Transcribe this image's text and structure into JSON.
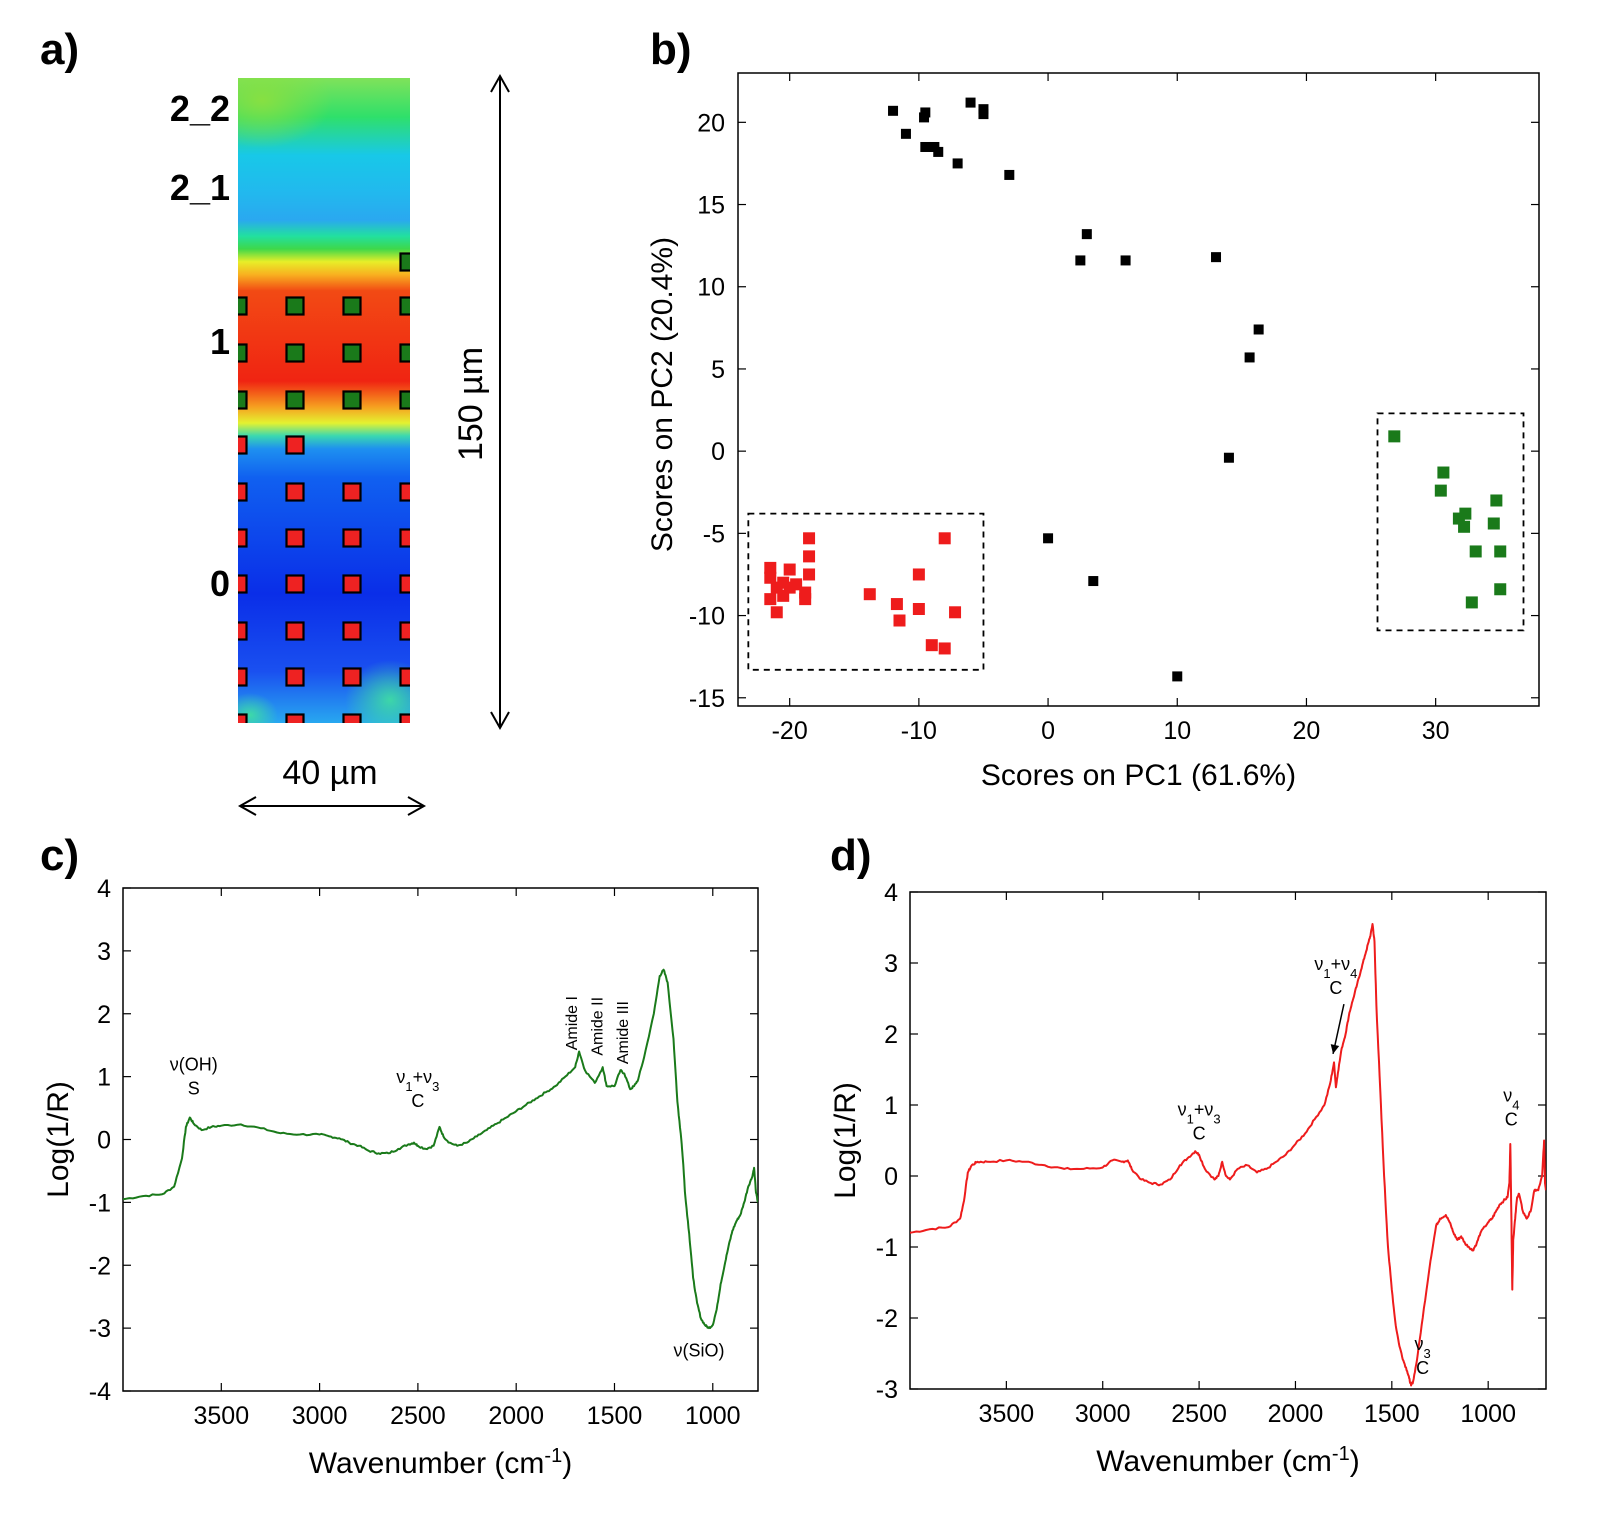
{
  "panels": {
    "a": {
      "label": "a)",
      "row_labels": [
        "2_2",
        "2_1",
        "1",
        "0"
      ],
      "height_label": "150 µm",
      "width_label": "40 µm"
    },
    "b": {
      "label": "b)"
    },
    "c": {
      "label": "c)"
    },
    "d": {
      "label": "d)"
    }
  },
  "chart_data": [
    {
      "panel": "a",
      "type": "heatmap",
      "title": "",
      "color_bands_top_to_bottom": [
        "green",
        "cyan-blue",
        "green",
        "yellow",
        "red",
        "yellow",
        "blue"
      ],
      "markers": {
        "green": {
          "color": "#1a7a1a",
          "columns": 4,
          "rows": 3,
          "extra": "top-right cell"
        },
        "red": {
          "color": "#ee2222",
          "columns": 4,
          "rows": 6,
          "first_row": "2 markers"
        }
      }
    },
    {
      "panel": "b",
      "type": "scatter",
      "xlabel": "Scores on PC1 (61.6%)",
      "ylabel": "Scores on PC2 (20.4%)",
      "xlim": [
        -24,
        38
      ],
      "ylim": [
        -15.5,
        23
      ],
      "xticks": [
        -20,
        -10,
        0,
        10,
        20,
        30
      ],
      "yticks": [
        -15,
        -10,
        -5,
        0,
        5,
        10,
        15,
        20
      ],
      "series": [
        {
          "color": "#000000",
          "points": [
            [
              -12,
              20.7
            ],
            [
              -9.5,
              20.6
            ],
            [
              -9.6,
              20.3
            ],
            [
              -6,
              21.2
            ],
            [
              -5,
              20.8
            ],
            [
              -5,
              20.5
            ],
            [
              -11,
              19.3
            ],
            [
              -9.5,
              18.5
            ],
            [
              -8.8,
              18.5
            ],
            [
              -8.5,
              18.2
            ],
            [
              -7,
              17.5
            ],
            [
              -3,
              16.8
            ],
            [
              3,
              13.2
            ],
            [
              2.5,
              11.6
            ],
            [
              6,
              11.6
            ],
            [
              13,
              11.8
            ],
            [
              16.3,
              7.4
            ],
            [
              15.6,
              5.7
            ],
            [
              14,
              -0.4
            ],
            [
              0,
              -5.3
            ],
            [
              3.5,
              -7.9
            ],
            [
              10,
              -13.7
            ]
          ]
        },
        {
          "color": "#ee1c1c",
          "points": [
            [
              -18.5,
              -5.3
            ],
            [
              -21.5,
              -7.1
            ],
            [
              -20,
              -7.2
            ],
            [
              -18.5,
              -6.4
            ],
            [
              -18.5,
              -7.5
            ],
            [
              -21.5,
              -7.7
            ],
            [
              -20.5,
              -8
            ],
            [
              -19.5,
              -8.1
            ],
            [
              -20,
              -8.3
            ],
            [
              -21,
              -8.3
            ],
            [
              -20.5,
              -8.8
            ],
            [
              -18.8,
              -8.6
            ],
            [
              -18.8,
              -9
            ],
            [
              -21.5,
              -9
            ],
            [
              -21,
              -9.8
            ],
            [
              -13.8,
              -8.7
            ],
            [
              -11.7,
              -9.3
            ],
            [
              -10,
              -9.6
            ],
            [
              -11.5,
              -10.3
            ],
            [
              -10,
              -7.5
            ],
            [
              -8,
              -5.3
            ],
            [
              -7.2,
              -9.8
            ],
            [
              -9,
              -11.8
            ],
            [
              -8,
              -12
            ]
          ]
        },
        {
          "color": "#1a7a1a",
          "points": [
            [
              26.8,
              0.9
            ],
            [
              30.6,
              -1.3
            ],
            [
              30.4,
              -2.4
            ],
            [
              32.3,
              -3.8
            ],
            [
              31.8,
              -4.1
            ],
            [
              32.2,
              -4.6
            ],
            [
              34.7,
              -3
            ],
            [
              34.5,
              -4.4
            ],
            [
              33.1,
              -6.1
            ],
            [
              35,
              -6.1
            ],
            [
              35,
              -8.4
            ],
            [
              32.8,
              -9.2
            ]
          ]
        }
      ],
      "annotations": [
        {
          "kind": "dashed-box",
          "x": [
            -23.2,
            -5
          ],
          "y": [
            -13.3,
            -3.8
          ]
        },
        {
          "kind": "dashed-box",
          "x": [
            25.5,
            36.8
          ],
          "y": [
            -10.9,
            2.3
          ]
        }
      ]
    },
    {
      "panel": "c",
      "type": "line",
      "xlabel_text": "Wavenumber (cm",
      "xlabel_sup": "-1",
      "xlabel_end": ")",
      "ylabel": "Log(1/R)",
      "xlim": [
        4000,
        770
      ],
      "ylim": [
        -4,
        4
      ],
      "x_reversed": true,
      "xticks": [
        3500,
        3000,
        2500,
        2000,
        1500,
        1000
      ],
      "yticks": [
        -4,
        -3,
        -2,
        -1,
        0,
        1,
        2,
        3,
        4
      ],
      "color": "#1a7a1a",
      "x": [
        4000,
        3900,
        3800,
        3740,
        3700,
        3680,
        3660,
        3640,
        3600,
        3550,
        3500,
        3400,
        3300,
        3200,
        3100,
        3000,
        2950,
        2900,
        2850,
        2800,
        2750,
        2700,
        2650,
        2600,
        2550,
        2520,
        2500,
        2460,
        2420,
        2390,
        2370,
        2340,
        2300,
        2250,
        2200,
        2150,
        2100,
        2050,
        2000,
        1950,
        1900,
        1850,
        1800,
        1750,
        1700,
        1680,
        1650,
        1600,
        1560,
        1540,
        1500,
        1470,
        1450,
        1420,
        1400,
        1380,
        1350,
        1300,
        1270,
        1250,
        1230,
        1200,
        1180,
        1160,
        1150,
        1140,
        1120,
        1100,
        1080,
        1060,
        1040,
        1020,
        1000,
        980,
        960,
        940,
        920,
        900,
        880,
        860,
        840,
        820,
        800,
        790,
        780,
        770
      ],
      "y": [
        -0.95,
        -0.9,
        -0.87,
        -0.75,
        -0.3,
        0.2,
        0.35,
        0.25,
        0.15,
        0.2,
        0.22,
        0.24,
        0.18,
        0.1,
        0.08,
        0.08,
        0.05,
        0.02,
        -0.05,
        -0.1,
        -0.18,
        -0.22,
        -0.22,
        -0.15,
        -0.08,
        -0.05,
        -0.1,
        -0.15,
        -0.1,
        0.2,
        0.05,
        -0.05,
        -0.1,
        -0.05,
        0.05,
        0.15,
        0.25,
        0.35,
        0.45,
        0.55,
        0.65,
        0.75,
        0.85,
        1.0,
        1.15,
        1.4,
        1.1,
        0.9,
        1.15,
        0.85,
        0.85,
        1.1,
        1.05,
        0.8,
        0.85,
        0.95,
        1.3,
        2.0,
        2.6,
        2.7,
        2.5,
        1.6,
        0.6,
        0.0,
        -0.4,
        -0.9,
        -1.5,
        -2.2,
        -2.6,
        -2.85,
        -2.95,
        -3.0,
        -2.95,
        -2.7,
        -2.3,
        -2.0,
        -1.7,
        -1.45,
        -1.3,
        -1.2,
        -1.0,
        -0.75,
        -0.6,
        -0.45,
        -0.85,
        -1.0
      ],
      "annotations": [
        {
          "text": "ν(OH)",
          "sub": "S",
          "x": 3640,
          "y": 1.1
        },
        {
          "text": "ν1+ν3",
          "sub": "C",
          "x": 2500,
          "y": 0.9
        },
        {
          "text": "Amide I",
          "x": 1690,
          "y": 1.85,
          "rotated": true
        },
        {
          "text": "Amide II",
          "x": 1560,
          "y": 1.8,
          "rotated": true
        },
        {
          "text": "Amide III",
          "x": 1430,
          "y": 1.7,
          "rotated": true
        },
        {
          "text": "ν(SiO)",
          "x": 1070,
          "y": -3.45
        }
      ]
    },
    {
      "panel": "d",
      "type": "line",
      "xlabel_text": "Wavenumber (cm",
      "xlabel_sup": "-1",
      "xlabel_end": ")",
      "ylabel": "Log(1/R)",
      "xlim": [
        4000,
        700
      ],
      "ylim": [
        -3,
        4
      ],
      "x_reversed": true,
      "xticks": [
        3500,
        3000,
        2500,
        2000,
        1500,
        1000
      ],
      "yticks": [
        -3,
        -2,
        -1,
        0,
        1,
        2,
        3,
        4
      ],
      "color": "#ee1c1c",
      "x": [
        4000,
        3900,
        3800,
        3740,
        3720,
        3700,
        3680,
        3650,
        3600,
        3500,
        3400,
        3300,
        3200,
        3100,
        3000,
        2950,
        2900,
        2870,
        2850,
        2800,
        2750,
        2700,
        2650,
        2600,
        2560,
        2520,
        2500,
        2470,
        2420,
        2400,
        2380,
        2360,
        2340,
        2300,
        2250,
        2200,
        2150,
        2100,
        2050,
        2000,
        1950,
        1900,
        1850,
        1820,
        1800,
        1790,
        1780,
        1760,
        1740,
        1720,
        1700,
        1680,
        1660,
        1640,
        1620,
        1610,
        1600,
        1590,
        1580,
        1560,
        1540,
        1520,
        1500,
        1480,
        1460,
        1440,
        1420,
        1410,
        1400,
        1390,
        1370,
        1340,
        1300,
        1270,
        1250,
        1220,
        1200,
        1180,
        1160,
        1140,
        1120,
        1100,
        1080,
        1060,
        1040,
        1000,
        980,
        960,
        940,
        920,
        900,
        890,
        885,
        880,
        875,
        870,
        860,
        850,
        840,
        820,
        800,
        780,
        760,
        740,
        720,
        710,
        705,
        700
      ],
      "y": [
        -0.8,
        -0.75,
        -0.72,
        -0.6,
        -0.35,
        0.05,
        0.15,
        0.2,
        0.2,
        0.22,
        0.2,
        0.15,
        0.1,
        0.1,
        0.12,
        0.22,
        0.2,
        0.22,
        0.1,
        -0.05,
        -0.1,
        -0.12,
        -0.05,
        0.15,
        0.25,
        0.35,
        0.3,
        0.1,
        -0.05,
        0.0,
        0.2,
        0.0,
        -0.05,
        0.1,
        0.15,
        0.05,
        0.1,
        0.2,
        0.3,
        0.45,
        0.6,
        0.8,
        1.0,
        1.3,
        1.6,
        1.25,
        1.45,
        1.8,
        2.0,
        2.3,
        2.5,
        2.7,
        2.9,
        3.1,
        3.3,
        3.4,
        3.55,
        3.3,
        2.4,
        1.2,
        0.0,
        -1.0,
        -1.6,
        -2.1,
        -2.4,
        -2.6,
        -2.75,
        -2.85,
        -2.95,
        -2.9,
        -2.6,
        -2.0,
        -1.2,
        -0.7,
        -0.6,
        -0.55,
        -0.65,
        -0.8,
        -0.9,
        -0.85,
        -0.95,
        -1.0,
        -1.05,
        -0.95,
        -0.8,
        -0.65,
        -0.6,
        -0.5,
        -0.4,
        -0.35,
        -0.3,
        -0.1,
        0.45,
        -0.5,
        -1.6,
        -0.9,
        -0.6,
        -0.3,
        -0.25,
        -0.5,
        -0.6,
        -0.5,
        -0.2,
        -0.2,
        0.0,
        0.5,
        -0.1,
        -0.2
      ],
      "annotations": [
        {
          "text": "ν1+ν3",
          "sub": "C",
          "x": 2500,
          "y": 0.85
        },
        {
          "text": "ν1+ν4",
          "sub": "C",
          "x": 1790,
          "y": 2.9,
          "arrow_to": [
            1805,
            1.72
          ]
        },
        {
          "text": "ν4",
          "sub": "C",
          "x": 880,
          "y": 1.05
        },
        {
          "text": "ν3",
          "sub": "C",
          "x": 1340,
          "y": -2.45
        }
      ]
    }
  ]
}
